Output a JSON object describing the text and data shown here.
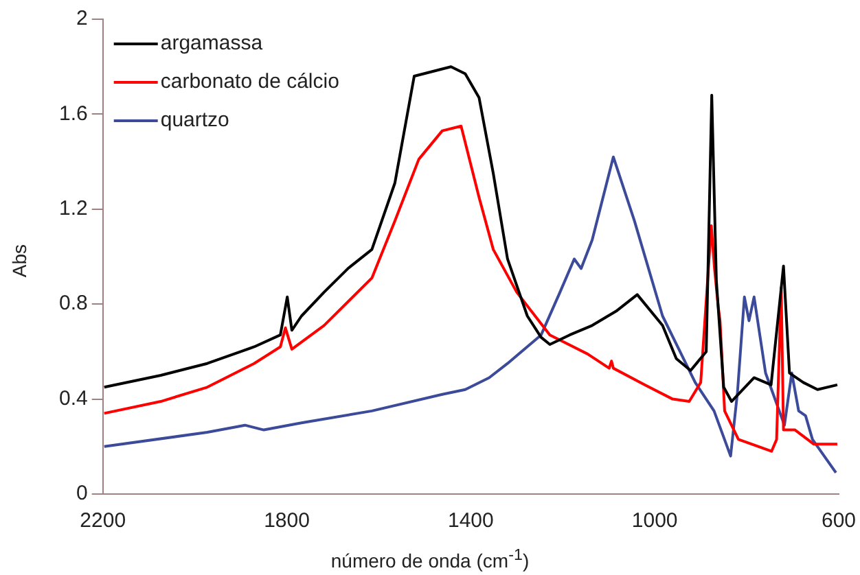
{
  "chart_data": {
    "type": "line",
    "xlabel": "número de onda (cm$^{-1}$)",
    "ylabel": "Abs",
    "xlim": [
      2200,
      600
    ],
    "xticks": [
      2200,
      1800,
      1400,
      1000,
      600
    ],
    "ylim": [
      0,
      2
    ],
    "yticks": [
      0,
      0.4,
      0.8,
      1.2,
      1.6,
      2
    ],
    "grid": false,
    "legend": "top left",
    "marker": "none",
    "line_style": "solid",
    "series": [
      {
        "name": "argamassa",
        "color": "#000000",
        "x": [
          2197,
          2074,
          1973,
          1871,
          1814,
          1799,
          1789,
          1768,
          1719,
          1667,
          1615,
          1565,
          1523,
          1443,
          1412,
          1382,
          1351,
          1320,
          1277,
          1247,
          1228,
          1185,
          1136,
          1084,
          1038,
          983,
          953,
          922,
          888,
          876,
          866,
          850,
          833,
          784,
          747,
          720,
          707,
          677,
          646,
          603
        ],
        "values": [
          0.45,
          0.5,
          0.55,
          0.62,
          0.67,
          0.83,
          0.69,
          0.75,
          0.85,
          0.95,
          1.03,
          1.31,
          1.76,
          1.8,
          1.77,
          1.67,
          1.35,
          0.99,
          0.75,
          0.66,
          0.63,
          0.67,
          0.71,
          0.77,
          0.84,
          0.71,
          0.57,
          0.52,
          0.6,
          1.68,
          0.9,
          0.45,
          0.39,
          0.49,
          0.46,
          0.96,
          0.51,
          0.47,
          0.44,
          0.46
        ]
      },
      {
        "name": "carbonato de cálcio",
        "color": "#ff0000",
        "x": [
          2197,
          2074,
          1973,
          1871,
          1814,
          1803,
          1789,
          1719,
          1615,
          1565,
          1513,
          1462,
          1421,
          1382,
          1351,
          1300,
          1228,
          1146,
          1099,
          1094,
          1090,
          1022,
          961,
          925,
          900,
          877,
          870,
          862,
          858,
          848,
          818,
          746,
          735,
          725,
          720,
          695,
          654,
          603
        ],
        "values": [
          0.34,
          0.39,
          0.45,
          0.55,
          0.62,
          0.7,
          0.61,
          0.71,
          0.91,
          1.15,
          1.41,
          1.53,
          1.55,
          1.25,
          1.03,
          0.85,
          0.67,
          0.59,
          0.53,
          0.56,
          0.53,
          0.46,
          0.4,
          0.39,
          0.47,
          1.13,
          0.95,
          0.79,
          0.73,
          0.35,
          0.23,
          0.18,
          0.23,
          0.87,
          0.27,
          0.27,
          0.21,
          0.21
        ]
      },
      {
        "name": "quartzo",
        "color": "#3c4a9a",
        "x": [
          2197,
          1973,
          1891,
          1850,
          1768,
          1615,
          1462,
          1412,
          1360,
          1320,
          1247,
          1206,
          1175,
          1160,
          1136,
          1090,
          1044,
          983,
          912,
          871,
          835,
          820,
          805,
          795,
          784,
          759,
          718,
          702,
          687,
          672,
          657,
          606
        ],
        "values": [
          0.2,
          0.26,
          0.29,
          0.27,
          0.3,
          0.35,
          0.42,
          0.44,
          0.49,
          0.55,
          0.67,
          0.85,
          0.99,
          0.95,
          1.07,
          1.42,
          1.15,
          0.75,
          0.47,
          0.35,
          0.16,
          0.43,
          0.83,
          0.73,
          0.83,
          0.51,
          0.29,
          0.51,
          0.35,
          0.33,
          0.23,
          0.09
        ]
      }
    ]
  }
}
